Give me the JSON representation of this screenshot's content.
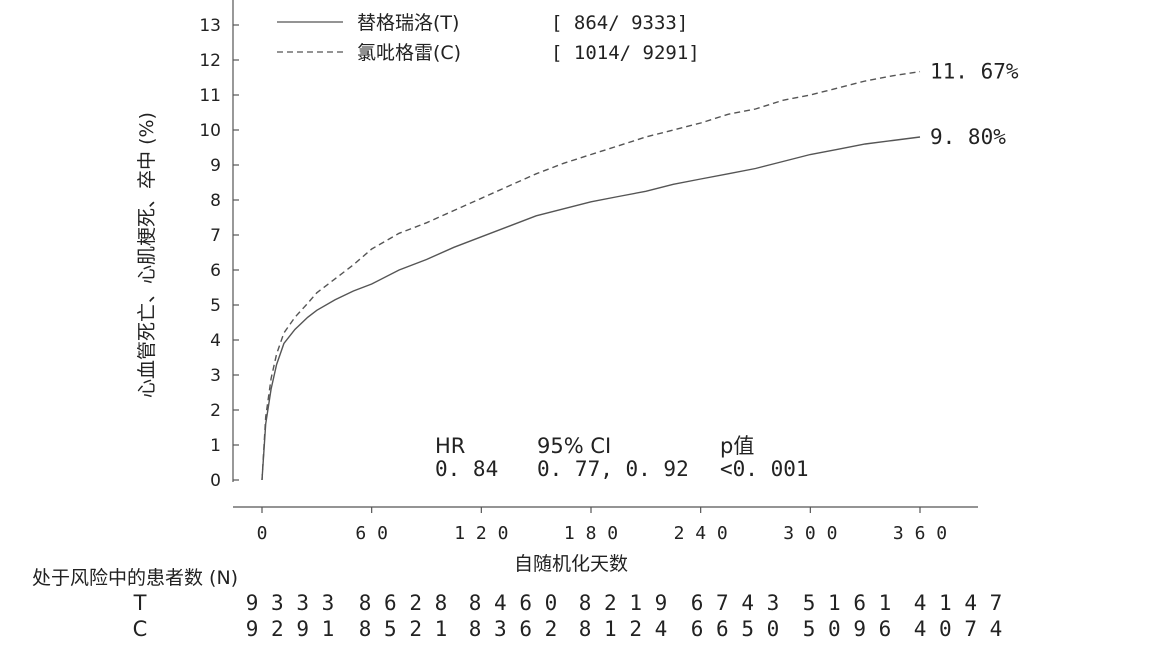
{
  "chart_data": {
    "type": "line",
    "ylabel": "心血管死亡、心肌梗死、卒中 (%)",
    "xlabel": "自随机化天数",
    "xlim": [
      0,
      360
    ],
    "ylim": [
      0,
      13
    ],
    "xticks": [
      0,
      60,
      120,
      180,
      240,
      300,
      360
    ],
    "yticks": [
      0,
      1,
      2,
      3,
      4,
      5,
      6,
      7,
      8,
      9,
      10,
      11,
      12,
      13
    ],
    "grid": false,
    "legend_position": "top-left",
    "series": [
      {
        "name": "替格瑞洛(T)",
        "legend_count": "[ 864/ 9333]",
        "style": "solid",
        "color": "#555555",
        "end_label": "9. 80%",
        "x": [
          0,
          2,
          5,
          8,
          12,
          18,
          25,
          30,
          40,
          50,
          60,
          75,
          90,
          105,
          120,
          135,
          150,
          165,
          180,
          195,
          210,
          225,
          240,
          255,
          270,
          285,
          300,
          315,
          330,
          345,
          360
        ],
        "y": [
          0,
          1.6,
          2.6,
          3.3,
          3.9,
          4.3,
          4.65,
          4.85,
          5.15,
          5.4,
          5.6,
          6.0,
          6.3,
          6.65,
          6.95,
          7.25,
          7.55,
          7.75,
          7.95,
          8.1,
          8.25,
          8.45,
          8.6,
          8.75,
          8.9,
          9.1,
          9.3,
          9.45,
          9.6,
          9.7,
          9.8
        ]
      },
      {
        "name": "氯吡格雷(C)",
        "legend_count": "[ 1014/ 9291]",
        "style": "dashed",
        "color": "#555555",
        "end_label": "11. 67%",
        "x": [
          0,
          2,
          5,
          8,
          12,
          18,
          25,
          30,
          40,
          50,
          60,
          75,
          90,
          105,
          120,
          135,
          150,
          165,
          180,
          195,
          210,
          225,
          240,
          255,
          270,
          285,
          300,
          315,
          330,
          345,
          360
        ],
        "y": [
          0,
          1.8,
          2.9,
          3.6,
          4.2,
          4.65,
          5.05,
          5.35,
          5.75,
          6.15,
          6.6,
          7.05,
          7.35,
          7.7,
          8.05,
          8.4,
          8.75,
          9.05,
          9.3,
          9.55,
          9.8,
          10.0,
          10.2,
          10.45,
          10.6,
          10.85,
          11.0,
          11.2,
          11.4,
          11.55,
          11.67
        ]
      }
    ],
    "stats": {
      "headers": [
        "HR",
        "95% CI",
        "p值"
      ],
      "values": [
        "0. 84",
        "0. 77, 0. 92",
        "<0. 001"
      ]
    },
    "risk_table": {
      "title": "处于风险中的患者数 (N)",
      "rows": [
        {
          "label": "T",
          "values": [
            "9333",
            "8628",
            "8460",
            "8219",
            "6743",
            "5161",
            "4147"
          ]
        },
        {
          "label": "C",
          "values": [
            "9291",
            "8521",
            "8362",
            "8124",
            "6650",
            "5096",
            "4074"
          ]
        }
      ]
    }
  }
}
